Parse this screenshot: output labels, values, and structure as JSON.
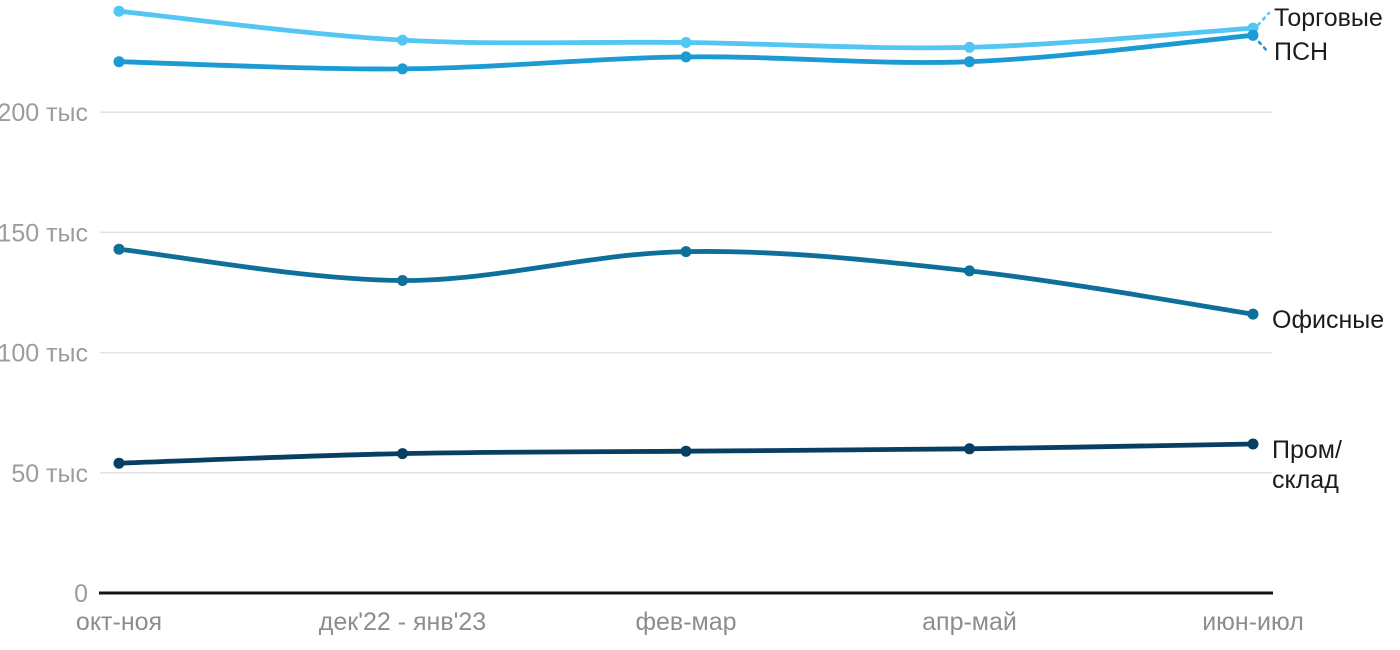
{
  "colors": {
    "background": "#ffffff",
    "grid": "#e2e2e2",
    "axis_line": "#141414",
    "y_tick_text": "#9c9c9c",
    "x_tick_text": "#8d8d8d",
    "series_label_text": "#1c1c1c"
  },
  "chart_data": {
    "type": "line",
    "title": "",
    "xlabel": "",
    "ylabel": "",
    "unit": "тыс",
    "grid": true,
    "legend_position": "right-of-last-point",
    "categories": [
      "окт-ноя",
      "дек'22 - янв'23",
      "фев-мар",
      "апр-май",
      "июн-июл"
    ],
    "yticks": [
      "0",
      "50 тыс",
      "100 тыс",
      "150 тыс",
      "200 тыс"
    ],
    "ytick_values": [
      0,
      50,
      100,
      150,
      200
    ],
    "ylim": [
      0,
      250
    ],
    "series": [
      {
        "name": "Торговые",
        "color": "#53c6f3",
        "values": [
          242,
          230,
          229,
          227,
          235
        ]
      },
      {
        "name": "ПСН",
        "color": "#1b9ad3",
        "values": [
          221,
          218,
          223,
          221,
          232
        ]
      },
      {
        "name": "Офисные",
        "color": "#0e6f99",
        "values": [
          143,
          130,
          142,
          134,
          116
        ]
      },
      {
        "name": "Пром/склад",
        "color": "#093e63",
        "values": [
          54,
          58,
          59,
          60,
          62
        ],
        "label_lines": [
          "Пром/",
          "склад"
        ]
      }
    ]
  }
}
